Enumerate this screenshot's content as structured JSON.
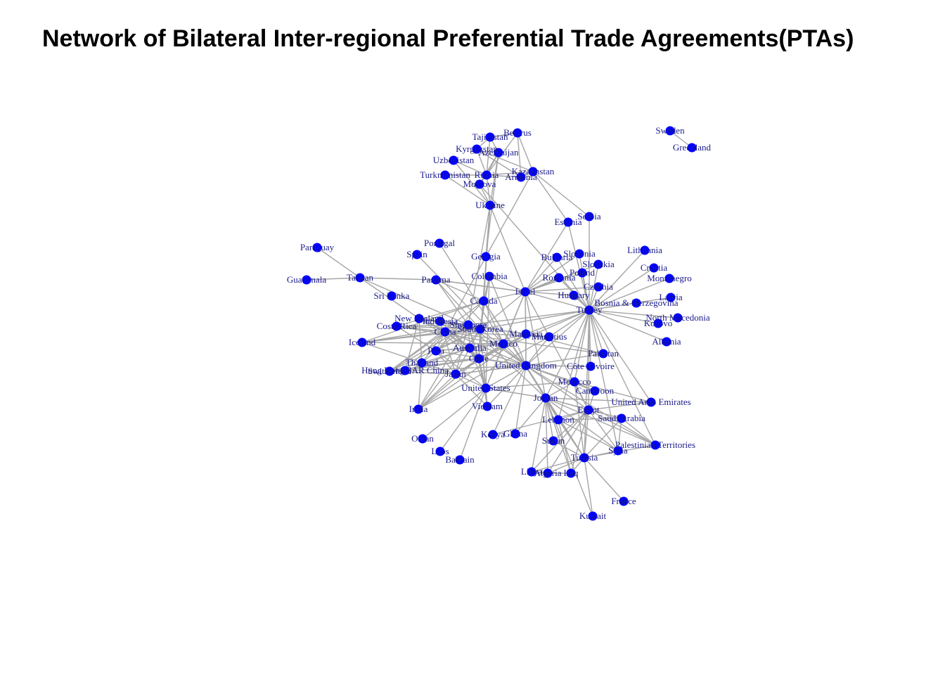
{
  "title": "Network of Bilateral Inter-regional Preferential Trade Agreements(PTAs)",
  "colors": {
    "node": "#0000ff",
    "edge": "#a6a6a6",
    "label": "#1a1a8c"
  },
  "nodes": [
    "Belarus",
    "Tajikistan",
    "Kyrgyzstan",
    "Azerbaijan",
    "Uzbekistan",
    "Turkmenistan",
    "Russia",
    "Armenia",
    "Kazakhstan",
    "Moldova",
    "Ukraine",
    "Sweden",
    "Greenland",
    "Serbia",
    "Estonia",
    "Portugal",
    "Spain",
    "Georgia",
    "Bulgaria",
    "Slovenia",
    "Slovakia",
    "Lithuania",
    "Poland",
    "Croatia",
    "Paraguay",
    "Taiwan",
    "Guatemala",
    "Panama",
    "Colombia",
    "Romania",
    "Montenegro",
    "Israel",
    "Czechia",
    "Hungary",
    "Latvia",
    "Sri Lanka",
    "Canada",
    "Bosnia & Herzegovina",
    "Turkey",
    "North Macedonia",
    "Kosovo",
    "New Zealand",
    "Indonesia",
    "Costa Rica",
    "Singapore",
    "South Korea",
    "China",
    "Malaysia",
    "Mauritius",
    "Iceland",
    "Peru",
    "Australia",
    "Mexico",
    "Albania",
    "Chile",
    "Pakistan",
    "Thailand",
    "United Kingdom",
    "Côte d'Ivoire",
    "Hong Kong SAR China",
    "Switzerland",
    "Japan",
    "Morocco",
    "United States",
    "Cameroon",
    "India",
    "Jordan",
    "Vietnam",
    "United Arab Emirates",
    "Egypt",
    "Saudi Arabia",
    "Lebanon",
    "Kenya",
    "Ghana",
    "Oman",
    "Sudan",
    "Palestinian Territories",
    "Laos",
    "Syria",
    "Bahrain",
    "Tunisia",
    "Libya",
    "Algeria",
    "Iraq",
    "France",
    "Kuwait"
  ],
  "edges": [
    [
      "Belarus",
      "Russia"
    ],
    [
      "Belarus",
      "Kazakhstan"
    ],
    [
      "Belarus",
      "Armenia"
    ],
    [
      "Belarus",
      "Tajikistan"
    ],
    [
      "Russia",
      "Kazakhstan"
    ],
    [
      "Russia",
      "Armenia"
    ],
    [
      "Russia",
      "Kyrgyzstan"
    ],
    [
      "Russia",
      "Tajikistan"
    ],
    [
      "Russia",
      "Uzbekistan"
    ],
    [
      "Russia",
      "Turkmenistan"
    ],
    [
      "Russia",
      "Moldova"
    ],
    [
      "Russia",
      "Ukraine"
    ],
    [
      "Russia",
      "Azerbaijan"
    ],
    [
      "Kazakhstan",
      "Armenia"
    ],
    [
      "Kazakhstan",
      "Kyrgyzstan"
    ],
    [
      "Armenia",
      "Kyrgyzstan"
    ],
    [
      "Kyrgyzstan",
      "Tajikistan"
    ],
    [
      "Azerbaijan",
      "Tajikistan"
    ],
    [
      "Azerbaijan",
      "Ukraine"
    ],
    [
      "Uzbekistan",
      "Ukraine"
    ],
    [
      "Turkmenistan",
      "Ukraine"
    ],
    [
      "Moldova",
      "Ukraine"
    ],
    [
      "Moldova",
      "Azerbaijan"
    ],
    [
      "Ukraine",
      "Canada"
    ],
    [
      "Ukraine",
      "Israel"
    ],
    [
      "Ukraine",
      "Georgia"
    ],
    [
      "Ukraine",
      "Chile"
    ],
    [
      "Ukraine",
      "Singapore"
    ],
    [
      "Georgia",
      "Kazakhstan"
    ],
    [
      "Georgia",
      "Azerbaijan"
    ],
    [
      "Georgia",
      "China"
    ],
    [
      "Kazakhstan",
      "Serbia"
    ],
    [
      "Kazakhstan",
      "Estonia"
    ],
    [
      "Moldova",
      "Turkey"
    ],
    [
      "Sweden",
      "Greenland"
    ],
    [
      "Serbia",
      "Turkey"
    ],
    [
      "Estonia",
      "Turkey"
    ],
    [
      "Portugal",
      "Mexico"
    ],
    [
      "Spain",
      "Mexico"
    ],
    [
      "Paraguay",
      "Taiwan"
    ],
    [
      "Guatemala",
      "Taiwan"
    ],
    [
      "Taiwan",
      "Singapore"
    ],
    [
      "Taiwan",
      "New Zealand"
    ],
    [
      "Taiwan",
      "Panama"
    ],
    [
      "Panama",
      "Canada"
    ],
    [
      "Panama",
      "Singapore"
    ],
    [
      "Panama",
      "South Korea"
    ],
    [
      "Panama",
      "Israel"
    ],
    [
      "Colombia",
      "Israel"
    ],
    [
      "Colombia",
      "Canada"
    ],
    [
      "Colombia",
      "South Korea"
    ],
    [
      "Colombia",
      "United States"
    ],
    [
      "Colombia",
      "United Kingdom"
    ],
    [
      "Israel",
      "Turkey"
    ],
    [
      "Israel",
      "Canada"
    ],
    [
      "Israel",
      "Mexico"
    ],
    [
      "Israel",
      "United States"
    ],
    [
      "Israel",
      "United Kingdom"
    ],
    [
      "Israel",
      "Bulgaria"
    ],
    [
      "Israel",
      "Romania"
    ],
    [
      "Israel",
      "Hungary"
    ],
    [
      "Israel",
      "Poland"
    ],
    [
      "Israel",
      "Czechia"
    ],
    [
      "Israel",
      "Slovenia"
    ],
    [
      "Israel",
      "Slovakia"
    ],
    [
      "Israel",
      "Estonia"
    ],
    [
      "Israel",
      "South Korea"
    ],
    [
      "Israel",
      "Malaysia"
    ],
    [
      "Israel",
      "Jordan"
    ],
    [
      "Israel",
      "Egypt"
    ],
    [
      "Israel",
      "Panama"
    ],
    [
      "Turkey",
      "Bulgaria"
    ],
    [
      "Turkey",
      "Romania"
    ],
    [
      "Turkey",
      "Hungary"
    ],
    [
      "Turkey",
      "Poland"
    ],
    [
      "Turkey",
      "Czechia"
    ],
    [
      "Turkey",
      "Slovenia"
    ],
    [
      "Turkey",
      "Slovakia"
    ],
    [
      "Turkey",
      "Lithuania"
    ],
    [
      "Turkey",
      "Croatia"
    ],
    [
      "Turkey",
      "Montenegro"
    ],
    [
      "Turkey",
      "Latvia"
    ],
    [
      "Turkey",
      "Bosnia & Herzegovina"
    ],
    [
      "Turkey",
      "North Macedonia"
    ],
    [
      "Turkey",
      "Kosovo"
    ],
    [
      "Turkey",
      "Albania"
    ],
    [
      "Turkey",
      "Pakistan"
    ],
    [
      "Turkey",
      "Malaysia"
    ],
    [
      "Turkey",
      "Mauritius"
    ],
    [
      "Turkey",
      "South Korea"
    ],
    [
      "Turkey",
      "Singapore"
    ],
    [
      "Turkey",
      "Chile"
    ],
    [
      "Turkey",
      "United Kingdom"
    ],
    [
      "Turkey",
      "Morocco"
    ],
    [
      "Turkey",
      "Egypt"
    ],
    [
      "Turkey",
      "Jordan"
    ],
    [
      "Turkey",
      "Tunisia"
    ],
    [
      "Turkey",
      "Côte d'Ivoire"
    ],
    [
      "Turkey",
      "United Arab Emirates"
    ],
    [
      "Turkey",
      "Palestinian Territories"
    ],
    [
      "Turkey",
      "Lebanon"
    ],
    [
      "Turkey",
      "Syria"
    ],
    [
      "Canada",
      "South Korea"
    ],
    [
      "Canada",
      "Chile"
    ],
    [
      "Canada",
      "Peru"
    ],
    [
      "Canada",
      "Mexico"
    ],
    [
      "Canada",
      "United Kingdom"
    ],
    [
      "Canada",
      "Costa Rica"
    ],
    [
      "Canada",
      "Iceland"
    ],
    [
      "Canada",
      "Switzerland"
    ],
    [
      "Canada",
      "Jordan"
    ],
    [
      "New Zealand",
      "China"
    ],
    [
      "New Zealand",
      "Malaysia"
    ],
    [
      "New Zealand",
      "Singapore"
    ],
    [
      "New Zealand",
      "South Korea"
    ],
    [
      "New Zealand",
      "Thailand"
    ],
    [
      "New Zealand",
      "Hong Kong SAR China"
    ],
    [
      "New Zealand",
      "Chile"
    ],
    [
      "New Zealand",
      "United Kingdom"
    ],
    [
      "Indonesia",
      "Australia"
    ],
    [
      "Indonesia",
      "Japan"
    ],
    [
      "Indonesia",
      "Chile"
    ],
    [
      "Indonesia",
      "South Korea"
    ],
    [
      "Costa Rica",
      "China"
    ],
    [
      "Costa Rica",
      "Singapore"
    ],
    [
      "Costa Rica",
      "Peru"
    ],
    [
      "Costa Rica",
      "Mexico"
    ],
    [
      "Costa Rica",
      "South Korea"
    ],
    [
      "Singapore",
      "China"
    ],
    [
      "Singapore",
      "Australia"
    ],
    [
      "Singapore",
      "India"
    ],
    [
      "Singapore",
      "Japan"
    ],
    [
      "Singapore",
      "United States"
    ],
    [
      "Singapore",
      "Peru"
    ],
    [
      "Singapore",
      "Jordan"
    ],
    [
      "Singapore",
      "Chile"
    ],
    [
      "Singapore",
      "Switzerland"
    ],
    [
      "Singapore",
      "Iceland"
    ],
    [
      "Singapore",
      "United Kingdom"
    ],
    [
      "South Korea",
      "China"
    ],
    [
      "South Korea",
      "Australia"
    ],
    [
      "South Korea",
      "Chile"
    ],
    [
      "South Korea",
      "Peru"
    ],
    [
      "South Korea",
      "India"
    ],
    [
      "South Korea",
      "United States"
    ],
    [
      "South Korea",
      "United Kingdom"
    ],
    [
      "South Korea",
      "Vietnam"
    ],
    [
      "South Korea",
      "Iceland"
    ],
    [
      "South Korea",
      "Switzerland"
    ],
    [
      "China",
      "Australia"
    ],
    [
      "China",
      "Chile"
    ],
    [
      "China",
      "Peru"
    ],
    [
      "China",
      "Pakistan"
    ],
    [
      "China",
      "Iceland"
    ],
    [
      "China",
      "Switzerland"
    ],
    [
      "China",
      "Mauritius"
    ],
    [
      "China",
      "Thailand"
    ],
    [
      "China",
      "Hong Kong SAR China"
    ],
    [
      "Malaysia",
      "Japan"
    ],
    [
      "Malaysia",
      "Chile"
    ],
    [
      "Malaysia",
      "India"
    ],
    [
      "Malaysia",
      "Australia"
    ],
    [
      "Malaysia",
      "Pakistan"
    ],
    [
      "Malaysia",
      "United Kingdom"
    ],
    [
      "Mauritius",
      "India"
    ],
    [
      "Mauritius",
      "United Kingdom"
    ],
    [
      "Iceland",
      "Japan"
    ],
    [
      "Iceland",
      "Mexico"
    ],
    [
      "Peru",
      "Australia"
    ],
    [
      "Peru",
      "Japan"
    ],
    [
      "Peru",
      "Mexico"
    ],
    [
      "Peru",
      "Thailand"
    ],
    [
      "Peru",
      "United Kingdom"
    ],
    [
      "Peru",
      "United States"
    ],
    [
      "Australia",
      "Chile"
    ],
    [
      "Australia",
      "Japan"
    ],
    [
      "Australia",
      "Thailand"
    ],
    [
      "Australia",
      "United States"
    ],
    [
      "Australia",
      "United Kingdom"
    ],
    [
      "Australia",
      "Mexico"
    ],
    [
      "Australia",
      "Hong Kong SAR China"
    ],
    [
      "Mexico",
      "Chile"
    ],
    [
      "Mexico",
      "Japan"
    ],
    [
      "Mexico",
      "United Kingdom"
    ],
    [
      "Mexico",
      "United States"
    ],
    [
      "Chile",
      "Japan"
    ],
    [
      "Chile",
      "Thailand"
    ],
    [
      "Chile",
      "Hong Kong SAR China"
    ],
    [
      "Chile",
      "United States"
    ],
    [
      "Chile",
      "United Kingdom"
    ],
    [
      "Chile",
      "Vietnam"
    ],
    [
      "Chile",
      "India"
    ],
    [
      "Chile",
      "Switzerland"
    ],
    [
      "Thailand",
      "Japan"
    ],
    [
      "Thailand",
      "India"
    ],
    [
      "Thailand",
      "Switzerland"
    ],
    [
      "Hong Kong SAR China",
      "Switzerland"
    ],
    [
      "Switzerland",
      "Japan"
    ],
    [
      "Japan",
      "United States"
    ],
    [
      "Japan",
      "United Kingdom"
    ],
    [
      "Japan",
      "Vietnam"
    ],
    [
      "Japan",
      "India"
    ],
    [
      "United States",
      "Oman"
    ],
    [
      "United States",
      "Bahrain"
    ],
    [
      "United States",
      "Morocco"
    ],
    [
      "United States",
      "Jordan"
    ],
    [
      "United States",
      "Laos"
    ],
    [
      "United States",
      "United Kingdom"
    ],
    [
      "United States",
      "Vietnam"
    ],
    [
      "United Kingdom",
      "Côte d'Ivoire"
    ],
    [
      "United Kingdom",
      "Morocco"
    ],
    [
      "United Kingdom",
      "Cameroon"
    ],
    [
      "United Kingdom",
      "Jordan"
    ],
    [
      "United Kingdom",
      "Egypt"
    ],
    [
      "United Kingdom",
      "Lebanon"
    ],
    [
      "United Kingdom",
      "Kenya"
    ],
    [
      "United Kingdom",
      "Ghana"
    ],
    [
      "United Kingdom",
      "Vietnam"
    ],
    [
      "United Kingdom",
      "Tunisia"
    ],
    [
      "United Kingdom",
      "Palestinian Territories"
    ],
    [
      "United Kingdom",
      "Pakistan"
    ],
    [
      "United Kingdom",
      "Switzerland"
    ],
    [
      "Morocco",
      "Jordan"
    ],
    [
      "Morocco",
      "Egypt"
    ],
    [
      "Morocco",
      "Tunisia"
    ],
    [
      "Morocco",
      "United Arab Emirates"
    ],
    [
      "Morocco",
      "Cameroon"
    ],
    [
      "Cameroon",
      "Egypt"
    ],
    [
      "Jordan",
      "Egypt"
    ],
    [
      "Jordan",
      "Lebanon"
    ],
    [
      "Jordan",
      "Syria"
    ],
    [
      "Jordan",
      "Tunisia"
    ],
    [
      "Jordan",
      "Iraq"
    ],
    [
      "Jordan",
      "Libya"
    ],
    [
      "Jordan",
      "Algeria"
    ],
    [
      "Jordan",
      "Sudan"
    ],
    [
      "Jordan",
      "Saudi Arabia"
    ],
    [
      "Jordan",
      "Kuwait"
    ],
    [
      "Jordan",
      "Palestinian Territories"
    ],
    [
      "Jordan",
      "United Arab Emirates"
    ],
    [
      "Jordan",
      "Ghana"
    ],
    [
      "Egypt",
      "Lebanon"
    ],
    [
      "Egypt",
      "Syria"
    ],
    [
      "Egypt",
      "Tunisia"
    ],
    [
      "Egypt",
      "Iraq"
    ],
    [
      "Egypt",
      "Libya"
    ],
    [
      "Egypt",
      "Algeria"
    ],
    [
      "Egypt",
      "Sudan"
    ],
    [
      "Egypt",
      "Saudi Arabia"
    ],
    [
      "Egypt",
      "Palestinian Territories"
    ],
    [
      "Egypt",
      "United Arab Emirates"
    ],
    [
      "Egypt",
      "Kenya"
    ],
    [
      "Saudi Arabia",
      "Lebanon"
    ],
    [
      "Saudi Arabia",
      "Syria"
    ],
    [
      "Saudi Arabia",
      "Palestinian Territories"
    ],
    [
      "Saudi Arabia",
      "Tunisia"
    ],
    [
      "Lebanon",
      "Syria"
    ],
    [
      "Lebanon",
      "Tunisia"
    ],
    [
      "Lebanon",
      "Iraq"
    ],
    [
      "Sudan",
      "Tunisia"
    ],
    [
      "Syria",
      "Tunisia"
    ],
    [
      "Palestinian Territories",
      "Tunisia"
    ],
    [
      "Tunisia",
      "Libya"
    ],
    [
      "Tunisia",
      "Algeria"
    ],
    [
      "Tunisia",
      "Iraq"
    ],
    [
      "Tunisia",
      "France"
    ],
    [
      "Tunisia",
      "Kuwait"
    ],
    [
      "Libya",
      "Algeria"
    ],
    [
      "Algeria",
      "Iraq"
    ]
  ]
}
